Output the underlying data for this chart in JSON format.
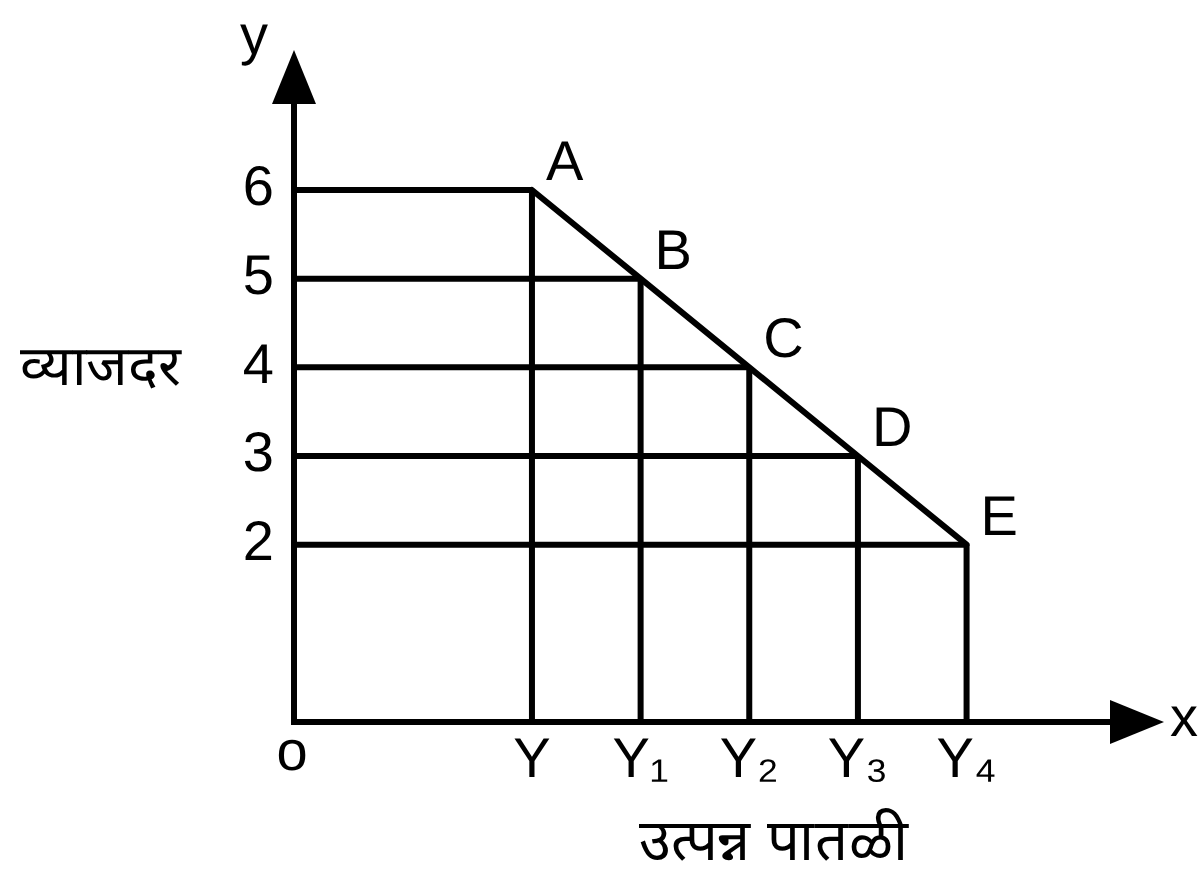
{
  "chart_data": {
    "type": "line",
    "xlabel": "उत्पन्न पातळी",
    "ylabel": "व्याजदर",
    "categories": [
      "Y",
      "Y₁",
      "Y₂",
      "Y₃",
      "Y₄"
    ],
    "series": [
      {
        "color": "#000000",
        "values": [
          6,
          5,
          4,
          3,
          2
        ]
      }
    ],
    "ylim": [
      0,
      6
    ],
    "yticks": [
      2,
      3,
      4,
      5,
      6
    ],
    "grid": true,
    "legend": false,
    "annotations": [
      {
        "text": "A",
        "x": "Y",
        "y": 6
      },
      {
        "text": "B",
        "x": "Y₁",
        "y": 5
      },
      {
        "text": "C",
        "x": "Y₂",
        "y": 4
      },
      {
        "text": "D",
        "x": "Y₃",
        "y": 3
      },
      {
        "text": "E",
        "x": "Y₄",
        "y": 2
      },
      "y",
      "x",
      "o"
    ]
  }
}
